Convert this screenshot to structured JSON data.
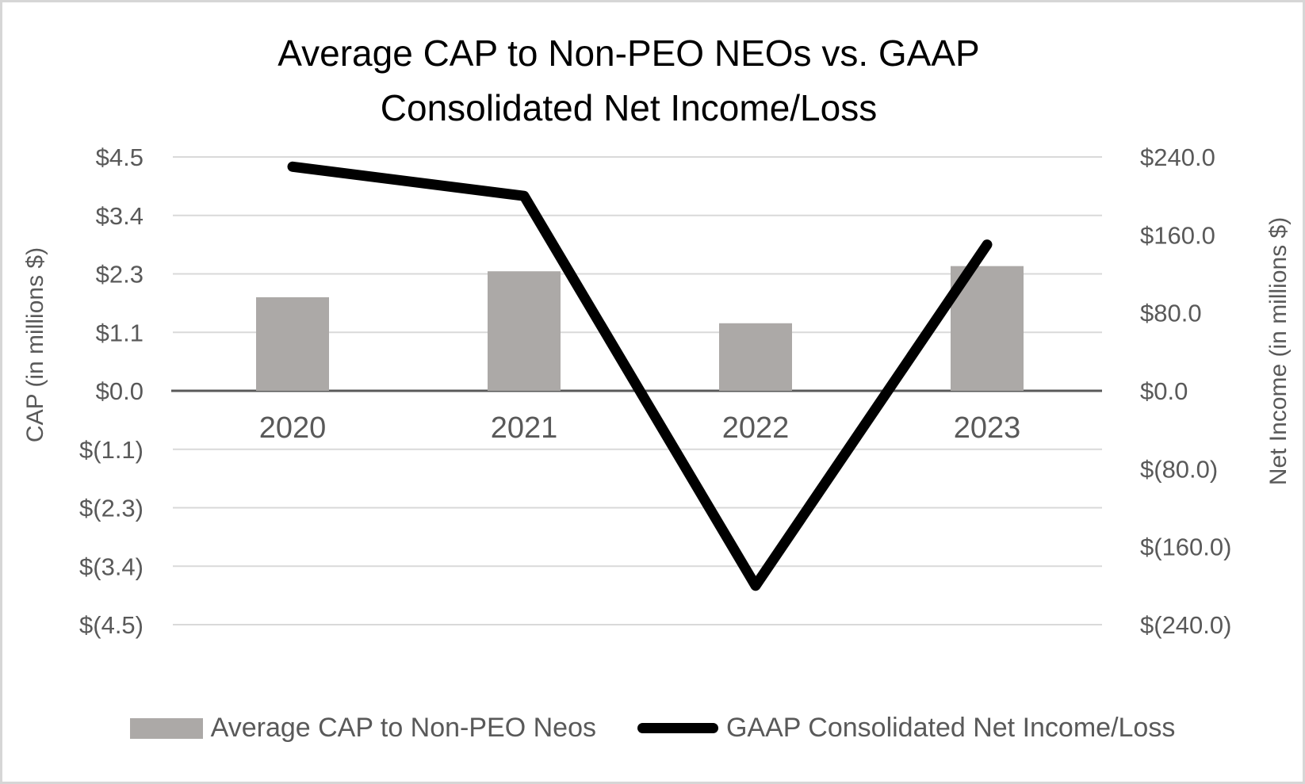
{
  "title": {
    "line1": "Average CAP to Non-PEO NEOs vs. GAAP",
    "line2": "Consolidated Net Income/Loss"
  },
  "chart_data": {
    "type": "combo-bar-line",
    "title": "Average CAP to Non-PEO NEOs vs. GAAP Consolidated Net Income/Loss",
    "categories": [
      "2020",
      "2021",
      "2022",
      "2023"
    ],
    "series": [
      {
        "name": "Average CAP to Non-PEO Neos",
        "type": "bar",
        "axis": "left",
        "values": [
          1.8,
          2.3,
          1.3,
          2.4
        ],
        "color": "#ACA9A7"
      },
      {
        "name": "GAAP Consolidated Net Income/Loss",
        "type": "line",
        "axis": "right",
        "values": [
          230,
          200,
          -200,
          150
        ],
        "color": "#000000"
      }
    ],
    "left_axis": {
      "title": "CAP (in millions $)",
      "range": [
        -4.5,
        4.5
      ],
      "tick_values": [
        4.5,
        3.375,
        2.25,
        1.125,
        0,
        -1.125,
        -2.25,
        -3.375,
        -4.5
      ],
      "tick_labels": [
        "$4.5",
        "$3.4",
        "$2.3",
        "$1.1",
        "$0.0",
        "$(1.1)",
        "$(2.3)",
        "$(3.4)",
        "$(4.5)"
      ]
    },
    "right_axis": {
      "title": "Net Income (in millions $)",
      "range": [
        -240,
        240
      ],
      "tick_values": [
        240,
        160,
        80,
        0,
        -80,
        -160,
        -240
      ],
      "tick_labels": [
        "$240.0",
        "$160.0",
        "$80.0",
        "$0.0",
        "$(80.0)",
        "$(160.0)",
        "$(240.0)"
      ]
    },
    "grid": true,
    "legend_position": "bottom",
    "colors": {
      "gridline": "#D9D9D9",
      "zero_axis": "#595959",
      "tick_text": "#595959",
      "category_text": "#595959",
      "axis_title_text": "#595959",
      "title_text": "#000000",
      "background": "#FFFFFF",
      "frame_border": "#D6D6D6"
    }
  }
}
